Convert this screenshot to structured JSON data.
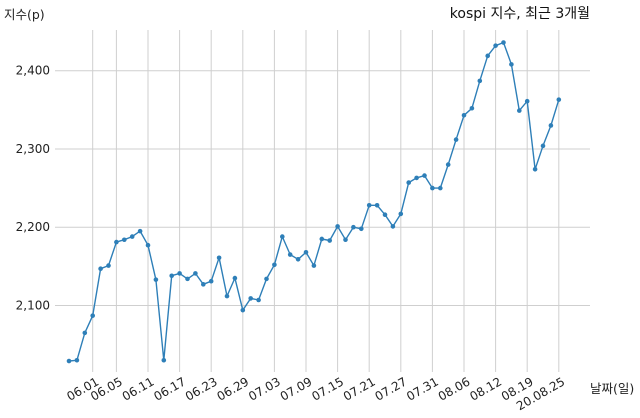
{
  "chart_data": {
    "type": "line",
    "title": "kospi 지수, 최근 3개월",
    "ylabel": "지수(p)",
    "xlabel": "날짜(일)",
    "ylim": [
      2015,
      2452
    ],
    "yticks": [
      2100,
      2200,
      2300,
      2400
    ],
    "ytick_labels": [
      "2,100",
      "2,200",
      "2,300",
      "2,400"
    ],
    "grid": true,
    "line_color": "#2e7fb8",
    "x_tick_labels": [
      "06.01",
      "06.05",
      "06.11",
      "06.17",
      "06.23",
      "06.29",
      "07.03",
      "07.09",
      "07.15",
      "07.21",
      "07.27",
      "07.31",
      "08.06",
      "08.12",
      "08.19",
      "20.08.25"
    ],
    "x_tick_index": [
      3,
      6,
      10,
      14,
      18,
      22,
      26,
      30,
      34,
      38,
      42,
      46,
      50,
      54,
      58,
      62
    ],
    "series": [
      {
        "values": [
          2029,
          2030,
          2065,
          2087,
          2147,
          2151,
          2181,
          2184,
          2188,
          2195,
          2177,
          2133,
          2030,
          2138,
          2141,
          2134,
          2141,
          2127,
          2131,
          2161,
          2112,
          2135,
          2094,
          2109,
          2107,
          2134,
          2152,
          2188,
          2165,
          2159,
          2168,
          2151,
          2185,
          2183,
          2201,
          2184,
          2200,
          2198,
          2228,
          2228,
          2216,
          2201,
          2217,
          2257,
          2263,
          2266,
          2250,
          2250,
          2280,
          2312,
          2343,
          2352,
          2387,
          2419,
          2432,
          2436,
          2408,
          2349,
          2361,
          2274,
          2304,
          2330,
          2363
        ]
      }
    ]
  }
}
